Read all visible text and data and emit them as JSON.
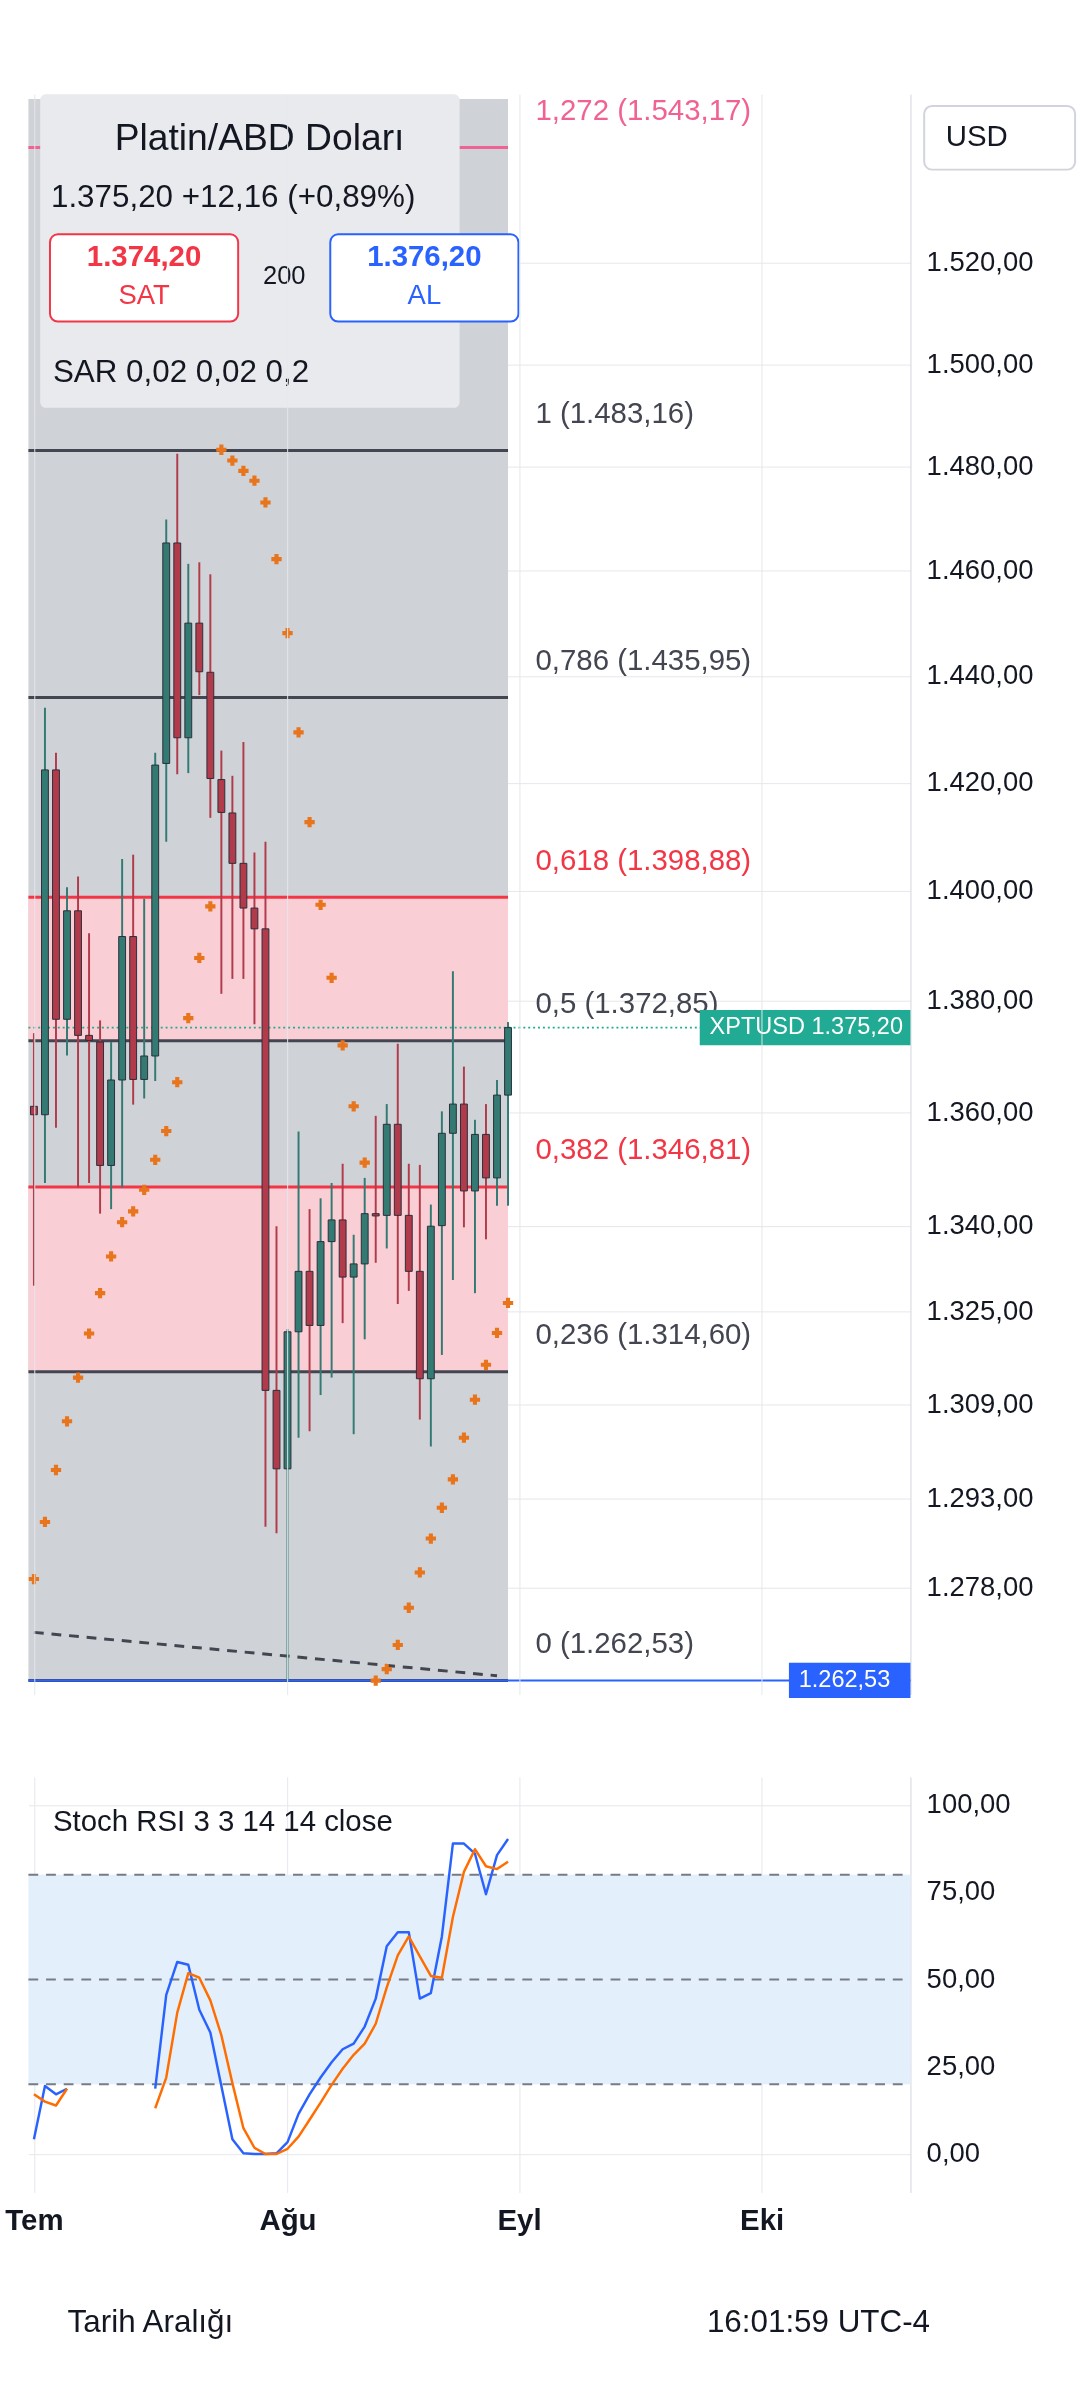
{
  "chart_data": [
    {
      "type": "candlestick",
      "title": "Platin/ABD Doları",
      "annotations": [
        "1.375,20 +12,16 (+0,89%)",
        "1.374,20",
        "SAT",
        "200",
        "1.376,20",
        "AL",
        "SAR 0,02 0,02 0,2",
        "USD"
      ],
      "categories": [
        null,
        null,
        null,
        null,
        null,
        null,
        null,
        null,
        null,
        null,
        null,
        null,
        null,
        null,
        null,
        null,
        null,
        null,
        null,
        null,
        null,
        null,
        null,
        null,
        null,
        null,
        null,
        null,
        null,
        null,
        null,
        null,
        null,
        null,
        null,
        null,
        null,
        null,
        null,
        null,
        null,
        null,
        null,
        null,
        null,
        null,
        null,
        null,
        null,
        null,
        null,
        null,
        null,
        null,
        null,
        null,
        null,
        null,
        null,
        null,
        null,
        null,
        null,
        null,
        null,
        null,
        null,
        null,
        null,
        null,
        null,
        null,
        null,
        null,
        null,
        null,
        null,
        null,
        null,
        null
      ],
      "ylim": [
        1261,
        1553
      ],
      "log": true,
      "grid": true,
      "tick_labels": "y",
      "yticks": [
        {
          "value": 1520,
          "label": "1.520,00"
        },
        {
          "value": 1500,
          "label": "1.500,00"
        },
        {
          "value": 1480,
          "label": "1.480,00"
        },
        {
          "value": 1460,
          "label": "1.460,00"
        },
        {
          "value": 1440,
          "label": "1.440,00"
        },
        {
          "value": 1420,
          "label": "1.420,00"
        },
        {
          "value": 1400,
          "label": "1.400,00"
        },
        {
          "value": 1380,
          "label": "1.380,00"
        },
        {
          "value": 1360,
          "label": "1.360,00"
        },
        {
          "value": 1340,
          "label": "1.340,00"
        },
        {
          "value": 1325,
          "label": "1.325,00"
        },
        {
          "value": 1309,
          "label": "1.309,00"
        },
        {
          "value": 1293,
          "label": "1.293,00"
        },
        {
          "value": 1278,
          "label": "1.278,00"
        }
      ],
      "bands": [
        {
          "axis": "y",
          "from": 1262.53,
          "to": 1553,
          "color": "#cfd2d6"
        },
        {
          "axis": "y",
          "from": 1372.85,
          "to": 1398.88,
          "color": "#f9cfd5"
        },
        {
          "axis": "y",
          "from": 1314.6,
          "to": 1346.81,
          "color": "#f9cfd5"
        }
      ],
      "ref_lines": [
        {
          "axis": "y",
          "value": 1543.17,
          "label": "1,272 (1.543,17)",
          "color": "#f06292"
        },
        {
          "axis": "y",
          "value": 1483.16,
          "label": "1 (1.483,16)",
          "color": "#434651"
        },
        {
          "axis": "y",
          "value": 1435.95,
          "label": "0,786 (1.435,95)",
          "color": "#434651"
        },
        {
          "axis": "y",
          "value": 1398.88,
          "label": "0,618 (1.398,88)",
          "color": "#f23645"
        },
        {
          "axis": "y",
          "value": 1372.85,
          "label": "0,5 (1.372,85)",
          "color": "#434651"
        },
        {
          "axis": "y",
          "value": 1346.81,
          "label": "0,382 (1.346,81)",
          "color": "#f23645"
        },
        {
          "axis": "y",
          "value": 1314.6,
          "label": "0,236 (1.314,60)",
          "color": "#434651"
        },
        {
          "axis": "y",
          "value": 1262.53,
          "label": "0 (1.262,53)",
          "color": "#434651"
        },
        {
          "axis": "y",
          "value": 1375.2,
          "label": "XPTUSD 1.375,20",
          "color": "#22ab94",
          "line_style": "dotted"
        },
        {
          "axis": "y",
          "value": 1262.53,
          "label": "1.262,53",
          "color": "#2962ff",
          "line_style": "solid"
        }
      ],
      "series": [
        {
          "type": "line",
          "line_style": "dashed",
          "color": "#434651",
          "values": [
            1270.5,
            null,
            null,
            null,
            null,
            null,
            null,
            null,
            null,
            null,
            null,
            null,
            null,
            null,
            null,
            null,
            null,
            null,
            null,
            null,
            null,
            null,
            null,
            null,
            null,
            null,
            null,
            null,
            null,
            null,
            null,
            null,
            null,
            null,
            null,
            null,
            null,
            null,
            null,
            null,
            null,
            null,
            1263.3,
            null,
            null,
            null,
            null,
            null,
            null,
            null,
            null,
            null,
            null,
            null,
            null,
            null,
            null,
            null,
            null,
            null,
            null,
            null,
            null,
            null,
            null,
            null,
            null,
            null,
            null,
            null,
            null,
            null,
            null,
            null,
            null,
            null,
            null,
            null,
            null,
            null
          ]
        },
        {
          "type": "candlestick",
          "colors": [
            "#b23b4b",
            "#337a73",
            "#b23b4b",
            "#337a73",
            "#b23b4b",
            "#b23b4b",
            "#b23b4b",
            "#337a73",
            "#337a73",
            "#b23b4b",
            "#337a73",
            "#337a73",
            "#337a73",
            "#b23b4b",
            "#337a73",
            "#b23b4b",
            "#b23b4b",
            "#b23b4b",
            "#b23b4b",
            "#b23b4b",
            "#b23b4b",
            "#b23b4b",
            "#b23b4b",
            "#337a73",
            "#337a73",
            "#b23b4b",
            "#337a73",
            "#337a73",
            "#b23b4b",
            "#337a73",
            "#337a73",
            "#b23b4b",
            "#337a73",
            "#b23b4b",
            "#b23b4b",
            "#b23b4b",
            "#337a73",
            "#337a73",
            "#337a73",
            "#b23b4b",
            "#337a73",
            "#b23b4b",
            "#337a73",
            "#337a73",
            null,
            null,
            null,
            null,
            null,
            null,
            null,
            null,
            null,
            null,
            null,
            null,
            null,
            null,
            null,
            null,
            null,
            null,
            null,
            null,
            null,
            null,
            null,
            null,
            null,
            null,
            null,
            null,
            null,
            null,
            null,
            null,
            null,
            null,
            null,
            null
          ],
          "ohlc": [
            [
              1361.1,
              1374.2,
              1329.5,
              1359.6
            ],
            [
              1359.6,
              1434.0,
              1347.5,
              1422.4
            ],
            [
              1422.4,
              1425.6,
              1357.3,
              1376.7
            ],
            [
              1376.7,
              1400.7,
              1370.2,
              1396.4
            ],
            [
              1396.4,
              1402.7,
              1346.7,
              1373.8
            ],
            [
              1373.8,
              1392.3,
              1347.5,
              1372.9
            ],
            [
              1372.6,
              1376.5,
              1342.1,
              1350.6
            ],
            [
              1350.6,
              1372.6,
              1342.9,
              1365.8
            ],
            [
              1365.8,
              1405.9,
              1346.7,
              1391.7
            ],
            [
              1391.7,
              1406.7,
              1361.4,
              1365.9
            ],
            [
              1365.9,
              1398.6,
              1362.5,
              1370.1
            ],
            [
              1370.1,
              1425.6,
              1365.6,
              1423.3
            ],
            [
              1423.6,
              1469.8,
              1409.1,
              1465.3
            ],
            [
              1465.3,
              1482.5,
              1421.6,
              1428.4
            ],
            [
              1428.4,
              1461.3,
              1421.8,
              1450.0
            ],
            [
              1450.0,
              1461.6,
              1436.4,
              1440.8
            ],
            [
              1440.7,
              1459.3,
              1413.5,
              1420.8
            ],
            [
              1420.6,
              1426.0,
              1381.3,
              1414.5
            ],
            [
              1414.4,
              1421.3,
              1384.0,
              1405.1
            ],
            [
              1405.1,
              1427.6,
              1384.0,
              1396.9
            ],
            [
              1396.9,
              1407.1,
              1375.8,
              1393.1
            ],
            [
              1393.1,
              1409.1,
              1288.2,
              1311.4
            ],
            [
              1311.4,
              1339.9,
              1287.1,
              1298.0
            ],
            [
              1298.0,
              1322.0,
              1262.5,
              1321.5
            ],
            [
              1321.5,
              1356.6,
              1303.3,
              1332.0
            ],
            [
              1332.0,
              1342.9,
              1304.4,
              1322.6
            ],
            [
              1322.6,
              1344.8,
              1310.6,
              1337.2
            ],
            [
              1337.2,
              1347.5,
              1313.6,
              1341.0
            ],
            [
              1341.0,
              1350.9,
              1323.0,
              1331.0
            ],
            [
              1331.0,
              1338.4,
              1303.9,
              1333.3
            ],
            [
              1333.3,
              1348.4,
              1320.2,
              1342.1
            ],
            [
              1342.1,
              1359.4,
              1333.5,
              1341.7
            ],
            [
              1341.8,
              1361.5,
              1336.0,
              1357.9
            ],
            [
              1357.9,
              1372.3,
              1326.3,
              1341.8
            ],
            [
              1341.8,
              1350.9,
              1328.6,
              1332.0
            ],
            [
              1332.0,
              1350.7,
              1306.4,
              1313.4
            ],
            [
              1313.4,
              1343.7,
              1301.8,
              1339.9
            ],
            [
              1340.0,
              1360.2,
              1317.5,
              1356.3
            ],
            [
              1356.3,
              1385.4,
              1330.5,
              1361.5
            ],
            [
              1361.5,
              1368.2,
              1339.7,
              1346.1
            ],
            [
              1346.1,
              1358.7,
              1328.2,
              1356.1
            ],
            [
              1356.1,
              1361.5,
              1337.6,
              1348.4
            ],
            [
              1348.4,
              1365.8,
              1343.5,
              1363.1
            ],
            [
              1363.1,
              1376.2,
              1343.5,
              1375.2
            ],
            null,
            null,
            null,
            null,
            null,
            null,
            null,
            null,
            null,
            null,
            null,
            null,
            null,
            null,
            null,
            null,
            null,
            null,
            null,
            null,
            null,
            null,
            null,
            null,
            null,
            null,
            null,
            null,
            null,
            null,
            null,
            null,
            null,
            null,
            null,
            null
          ]
        },
        {
          "type": "scatter",
          "marker": "cross",
          "color": "#e8741c",
          "values": [
            1279.4,
            1289.0,
            1297.8,
            1306.1,
            1313.6,
            1321.2,
            1328.2,
            1334.6,
            1340.6,
            1342.5,
            1346.3,
            1351.6,
            1356.7,
            1365.4,
            1376.9,
            1387.8,
            1397.2,
            1483.3,
            1481.2,
            1479.2,
            1477.3,
            1473.1,
            1462.2,
            1448.1,
            1429.4,
            1412.7,
            1397.5,
            1384.2,
            1372.0,
            1361.1,
            1351.1,
            1262.5,
            1264.4,
            1268.4,
            1274.6,
            1280.5,
            1286.2,
            1291.4,
            1296.2,
            1303.3,
            1309.8,
            1315.8,
            1321.3,
            1326.5,
            null,
            null,
            null,
            null,
            null,
            null,
            null,
            null,
            null,
            null,
            null,
            null,
            null,
            null,
            null,
            null,
            null,
            null,
            null,
            null,
            null,
            null,
            null,
            null,
            null,
            null,
            null,
            null,
            null,
            null,
            null,
            null,
            null,
            null,
            null,
            null
          ]
        }
      ]
    },
    {
      "type": "line",
      "annotations": [
        "Stoch RSI 3 3 14 14 close",
        "Tarih Aralığı",
        "16:01:59 UTC-4"
      ],
      "categories": [
        "Tem",
        null,
        null,
        null,
        null,
        null,
        null,
        null,
        null,
        null,
        null,
        null,
        null,
        null,
        null,
        null,
        null,
        null,
        null,
        null,
        null,
        null,
        null,
        "Ağu",
        null,
        null,
        null,
        null,
        null,
        null,
        null,
        null,
        null,
        null,
        null,
        null,
        null,
        null,
        null,
        null,
        null,
        null,
        null,
        null,
        "Eyl",
        null,
        null,
        null,
        null,
        null,
        null,
        null,
        null,
        null,
        null,
        null,
        null,
        null,
        null,
        null,
        null,
        null,
        null,
        null,
        null,
        null,
        "Eki",
        null,
        null,
        null,
        null,
        null,
        null,
        null,
        null,
        null,
        null,
        null,
        null,
        null
      ],
      "ylim": [
        -11,
        108
      ],
      "grid": true,
      "yticks": [
        {
          "value": 100,
          "label": "100,00"
        },
        {
          "value": 75,
          "label": "75,00"
        },
        {
          "value": 50,
          "label": "50,00"
        },
        {
          "value": 25,
          "label": "25,00"
        },
        {
          "value": 0,
          "label": "0,00"
        }
      ],
      "bands": [
        {
          "axis": "y",
          "from": 20,
          "to": 80,
          "color": "#e3f0fb"
        }
      ],
      "ref_lines": [
        {
          "axis": "y",
          "value": 80,
          "color": "#787b86",
          "line_style": "dashed"
        },
        {
          "axis": "y",
          "value": 50,
          "color": "#787b86",
          "line_style": "dashed"
        },
        {
          "axis": "y",
          "value": 20,
          "color": "#787b86",
          "line_style": "dashed"
        }
      ],
      "series": [
        {
          "color": "#2962ff",
          "line_style": "solid",
          "values": [
            4.2,
            19.5,
            17.1,
            18.7,
            null,
            null,
            null,
            null,
            null,
            null,
            null,
            18.7,
            45.6,
            55.0,
            54.2,
            41.3,
            34.8,
            19.5,
            4.2,
            0.2,
            0,
            0,
            0.2,
            3.4,
            11.5,
            17.1,
            21.9,
            26.3,
            30.0,
            31.6,
            36.5,
            44.5,
            59.5,
            63.5,
            63.5,
            44.5,
            46.1,
            62.3,
            88.9,
            88.9,
            86.0,
            74.4,
            85.6,
            90.2,
            null,
            null,
            null,
            null,
            null,
            null,
            null,
            null,
            null,
            null,
            null,
            null,
            null,
            null,
            null,
            null,
            null,
            null,
            null,
            null,
            null,
            null,
            null,
            null,
            null,
            null,
            null,
            null,
            null,
            null,
            null,
            null,
            null,
            null,
            null,
            null
          ]
        },
        {
          "color": "#ff6d00",
          "line_style": "solid",
          "values": [
            17.1,
            15.0,
            13.9,
            18.7,
            null,
            null,
            null,
            null,
            null,
            null,
            null,
            13.1,
            21.9,
            40.5,
            51.8,
            50.5,
            44.0,
            34.0,
            20.3,
            7.4,
            1.8,
            0,
            0,
            1.5,
            5.0,
            9.8,
            14.7,
            19.8,
            24.4,
            28.4,
            31.6,
            37.3,
            47.7,
            56.9,
            62.3,
            56.6,
            51.0,
            50.5,
            67.9,
            80.8,
            87.3,
            82.4,
            81.6,
            83.7,
            null,
            null,
            null,
            null,
            null,
            null,
            null,
            null,
            null,
            null,
            null,
            null,
            null,
            null,
            null,
            null,
            null,
            null,
            null,
            null,
            null,
            null,
            null,
            null,
            null,
            null,
            null,
            null,
            null,
            null,
            null,
            null,
            null,
            null,
            null,
            null
          ]
        }
      ]
    }
  ]
}
